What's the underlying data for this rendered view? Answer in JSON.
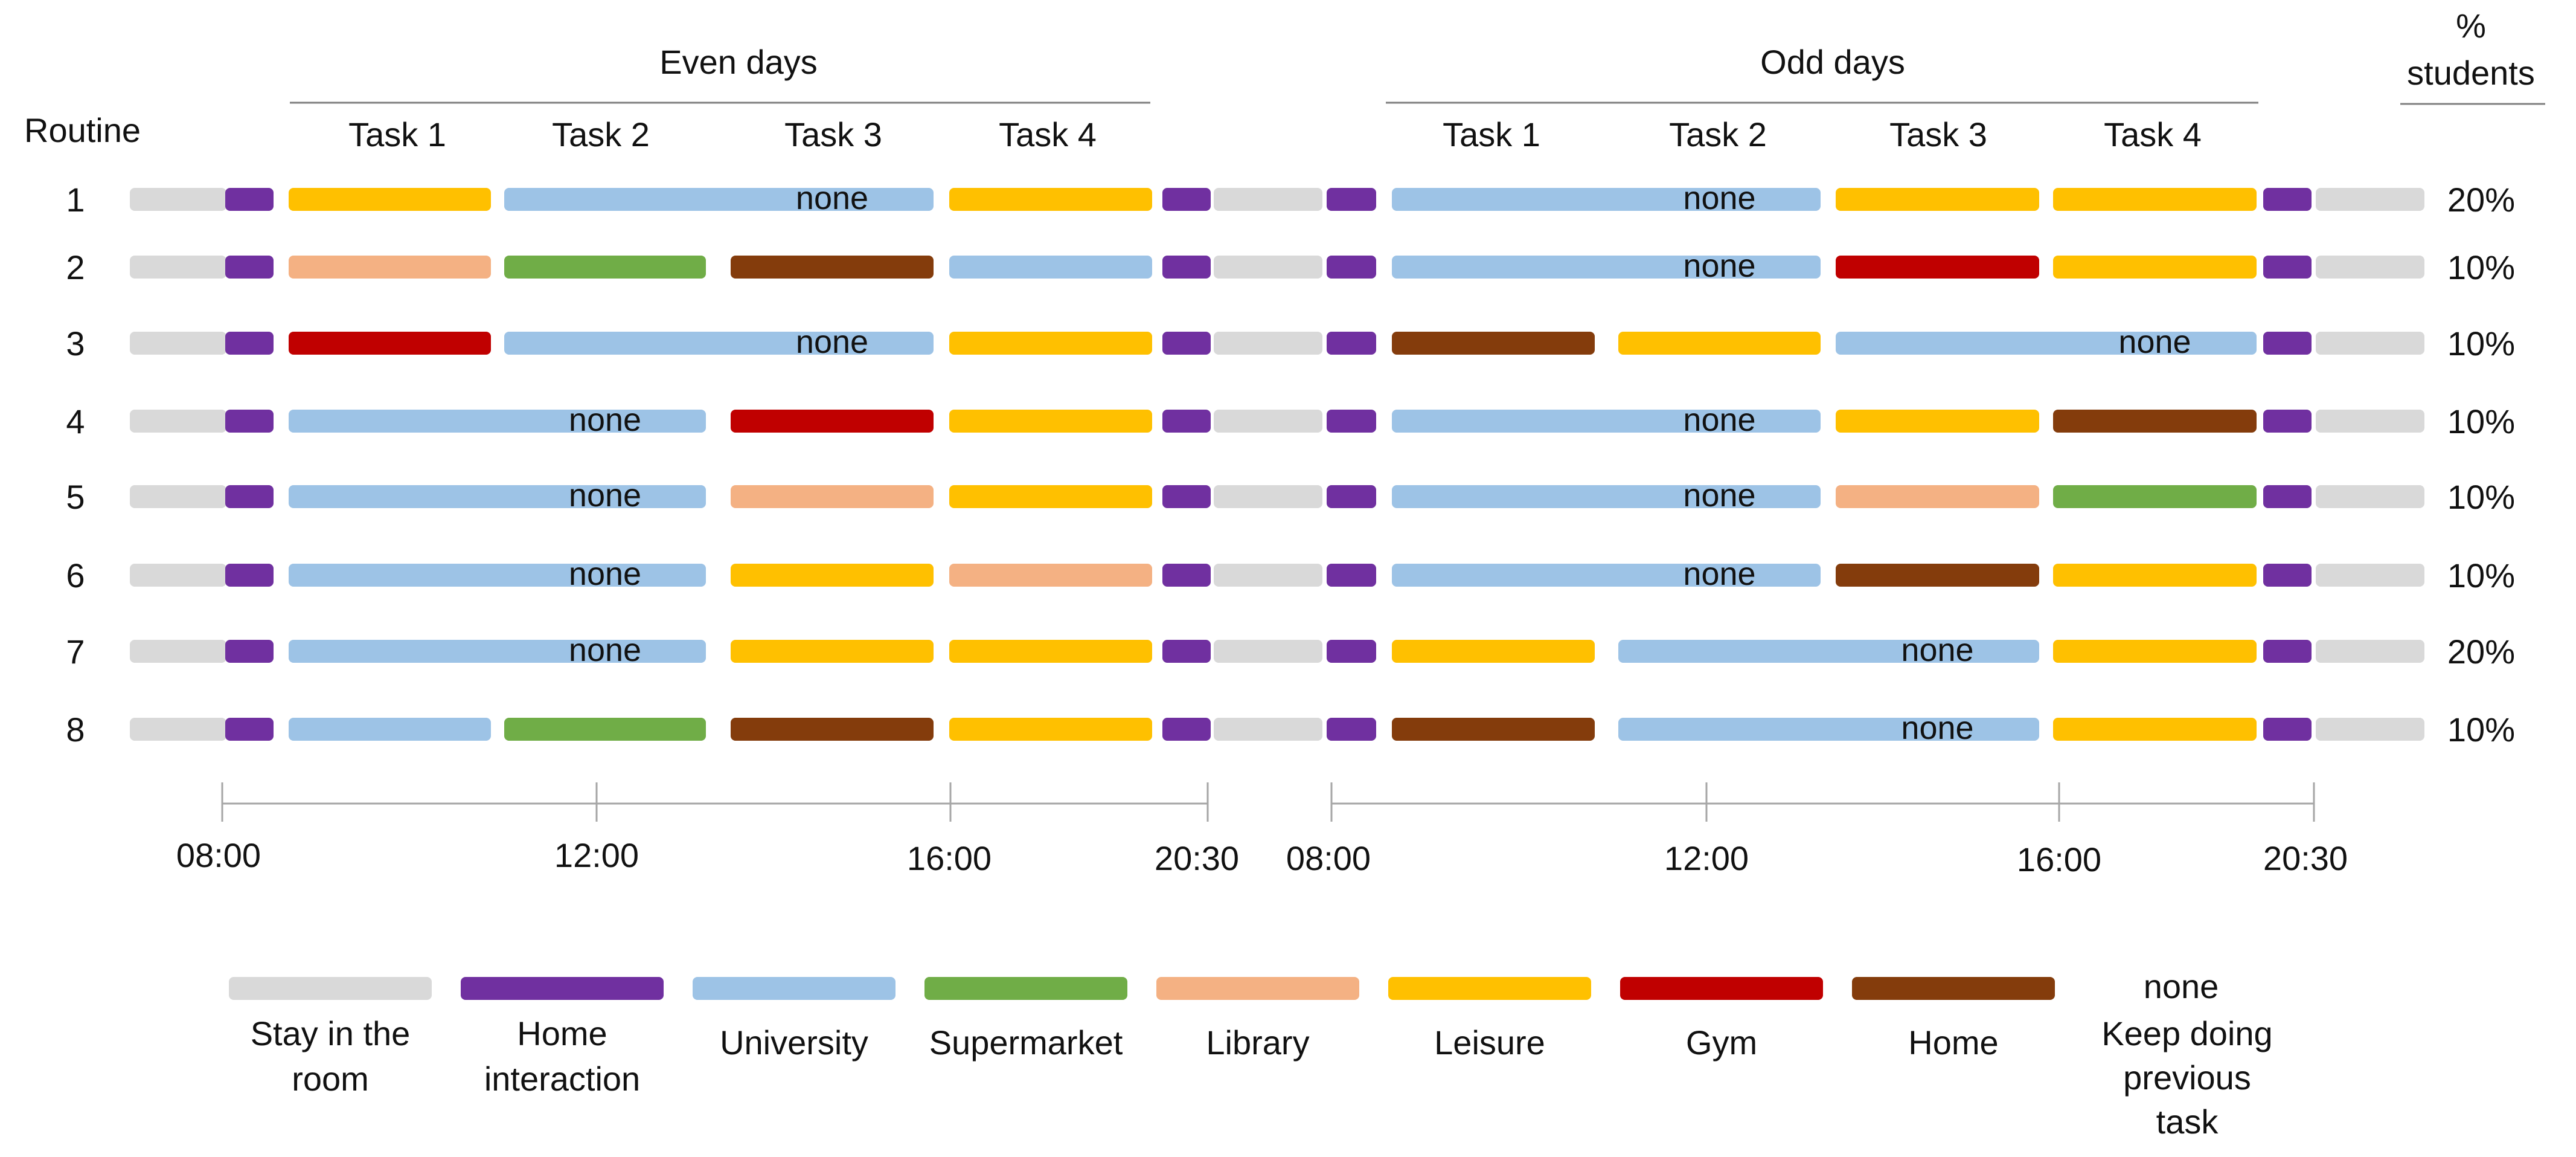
{
  "headers": {
    "routine": "Routine",
    "even_days": "Even days",
    "odd_days": "Odd days",
    "pct_line1": "%",
    "pct_line2": "students",
    "tasks": [
      "Task 1",
      "Task 2",
      "Task 3",
      "Task 4"
    ]
  },
  "colors": {
    "room": "#d9d9d9",
    "home_interaction": "#7030a0",
    "university": "#9dc3e6",
    "supermarket": "#70ad47",
    "library": "#f4b183",
    "leisure": "#ffc000",
    "gym": "#c00000",
    "home": "#843c0c"
  },
  "none_label": "none",
  "routines": [
    {
      "id": "1",
      "pct": "20%",
      "even": [
        "leisure",
        "university",
        "none",
        "leisure"
      ],
      "odd": [
        "university",
        "none",
        "leisure",
        "leisure"
      ]
    },
    {
      "id": "2",
      "pct": "10%",
      "even": [
        "library",
        "supermarket",
        "home",
        "university"
      ],
      "odd": [
        "university",
        "none",
        "gym",
        "leisure"
      ]
    },
    {
      "id": "3",
      "pct": "10%",
      "even": [
        "gym",
        "university",
        "none",
        "leisure"
      ],
      "odd": [
        "home",
        "leisure",
        "university",
        "none"
      ]
    },
    {
      "id": "4",
      "pct": "10%",
      "even": [
        "university",
        "none",
        "gym",
        "leisure"
      ],
      "odd": [
        "university",
        "none",
        "leisure",
        "home"
      ]
    },
    {
      "id": "5",
      "pct": "10%",
      "even": [
        "university",
        "none",
        "library",
        "leisure"
      ],
      "odd": [
        "university",
        "none",
        "library",
        "supermarket"
      ]
    },
    {
      "id": "6",
      "pct": "10%",
      "even": [
        "university",
        "none",
        "leisure",
        "library"
      ],
      "odd": [
        "university",
        "none",
        "home",
        "leisure"
      ]
    },
    {
      "id": "7",
      "pct": "20%",
      "even": [
        "university",
        "none",
        "leisure",
        "leisure"
      ],
      "odd": [
        "leisure",
        "university",
        "none",
        "leisure"
      ]
    },
    {
      "id": "8",
      "pct": "10%",
      "even": [
        "university",
        "supermarket",
        "home",
        "leisure"
      ],
      "odd": [
        "home",
        "university",
        "none",
        "leisure"
      ]
    }
  ],
  "time_axis": {
    "even_ticks": [
      "08:00",
      "12:00",
      "16:00",
      "20:30"
    ],
    "odd_ticks": [
      "08:00",
      "12:00",
      "16:00",
      "20:30"
    ]
  },
  "legend": [
    {
      "key": "room",
      "lines": [
        "Stay in the",
        "room"
      ]
    },
    {
      "key": "home_interaction",
      "lines": [
        "Home",
        "interaction"
      ]
    },
    {
      "key": "university",
      "lines": [
        "University"
      ]
    },
    {
      "key": "supermarket",
      "lines": [
        "Supermarket"
      ]
    },
    {
      "key": "library",
      "lines": [
        "Library"
      ]
    },
    {
      "key": "leisure",
      "lines": [
        "Leisure"
      ]
    },
    {
      "key": "gym",
      "lines": [
        "Gym"
      ]
    },
    {
      "key": "home",
      "lines": [
        "Home"
      ]
    },
    {
      "key": "none",
      "title": "none",
      "lines": [
        "Keep doing",
        "previous",
        "task"
      ]
    }
  ]
}
